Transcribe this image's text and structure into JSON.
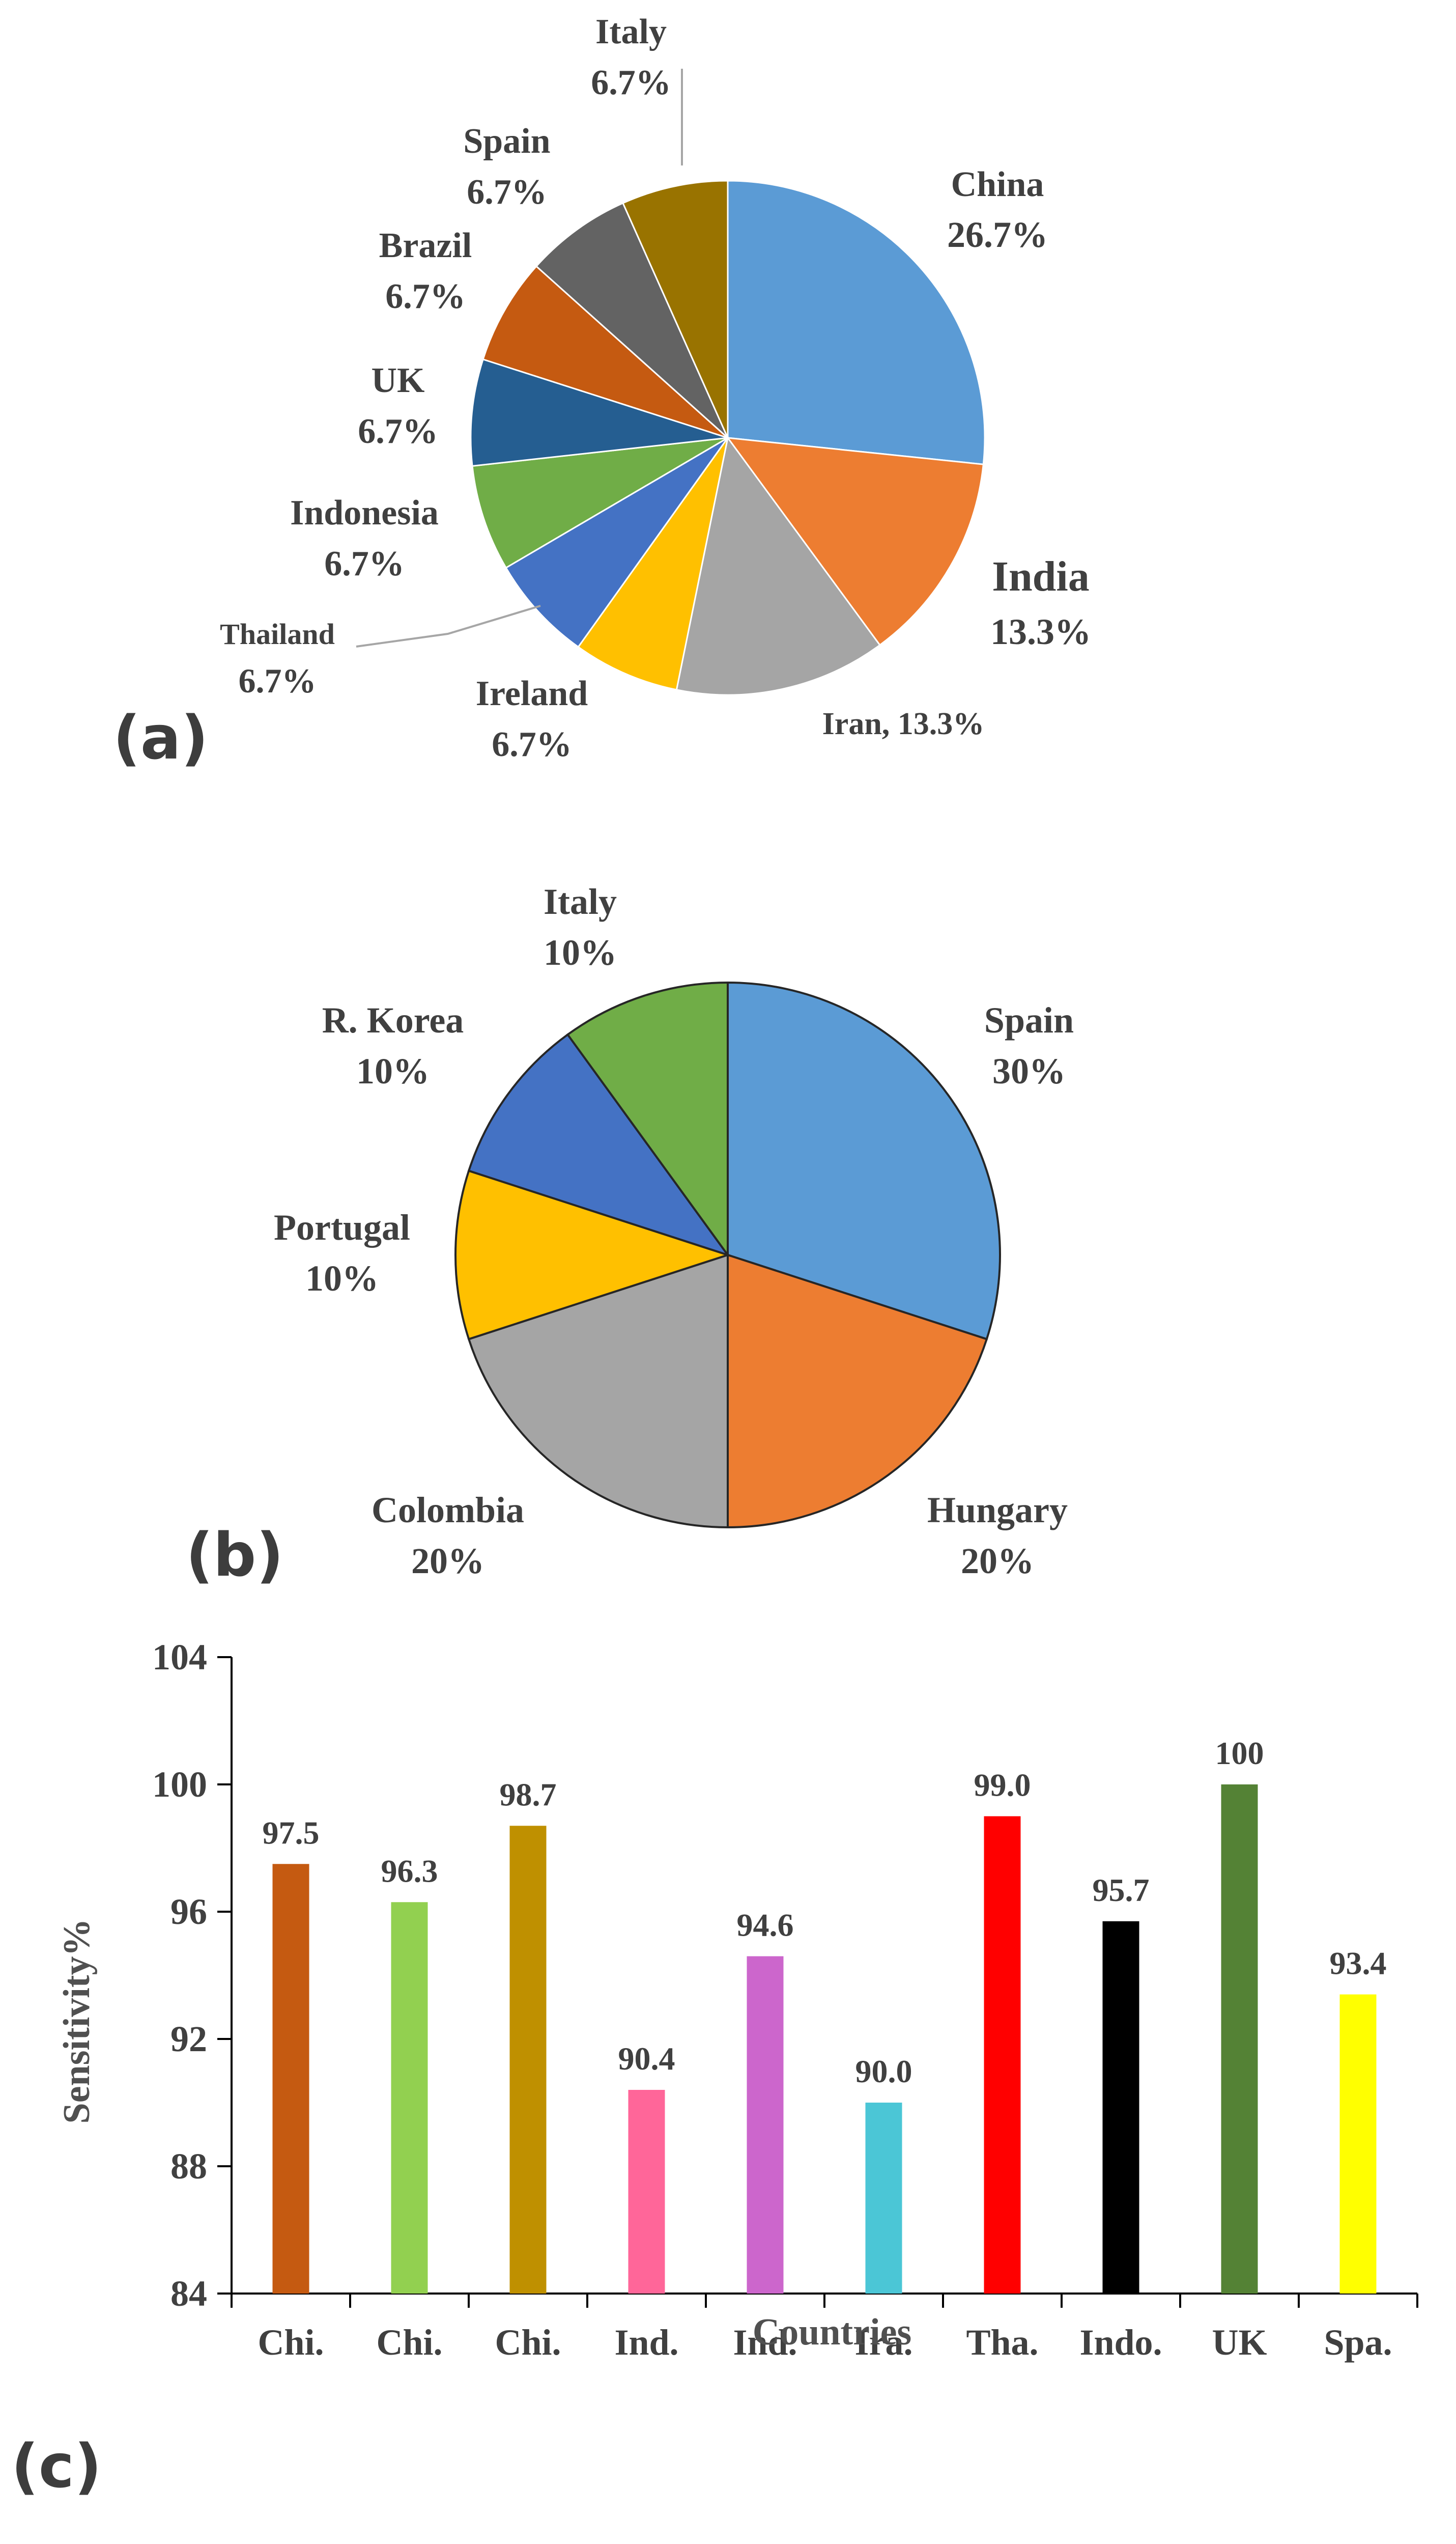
{
  "chart_data": [
    {
      "type": "pie",
      "panel": "(a)",
      "title": "",
      "slices": [
        {
          "label": "China",
          "value": 26.7,
          "value_label": "26.7%",
          "color": "#5b9bd5"
        },
        {
          "label": "India",
          "value": 13.3,
          "value_label": "13.3%",
          "color": "#ed7d31"
        },
        {
          "label": "Iran",
          "value": 13.3,
          "value_label": "Iran, 13.3%",
          "color": "#a5a5a5"
        },
        {
          "label": "Ireland",
          "value": 6.7,
          "value_label": "6.7%",
          "color": "#ffc000"
        },
        {
          "label": "Thailand",
          "value": 6.7,
          "value_label": "6.7%",
          "color": "#4472c4"
        },
        {
          "label": "Indonesia",
          "value": 6.7,
          "value_label": "6.7%",
          "color": "#70ad47"
        },
        {
          "label": "UK",
          "value": 6.7,
          "value_label": "6.7%",
          "color": "#255e91"
        },
        {
          "label": "Brazil",
          "value": 6.7,
          "value_label": "6.7%",
          "color": "#c55a11"
        },
        {
          "label": "Spain",
          "value": 6.7,
          "value_label": "6.7%",
          "color": "#636363"
        },
        {
          "label": "Italy",
          "value": 6.7,
          "value_label": "6.7%",
          "color": "#997300"
        }
      ]
    },
    {
      "type": "pie",
      "panel": "(b)",
      "title": "",
      "slices": [
        {
          "label": "Spain",
          "value": 30,
          "value_label": "30%",
          "color": "#5b9bd5"
        },
        {
          "label": "Hungary",
          "value": 20,
          "value_label": "20%",
          "color": "#ed7d31"
        },
        {
          "label": "Colombia",
          "value": 20,
          "value_label": "20%",
          "color": "#a5a5a5"
        },
        {
          "label": "Portugal",
          "value": 10,
          "value_label": "10%",
          "color": "#ffc000"
        },
        {
          "label": "R. Korea",
          "value": 10,
          "value_label": "10%",
          "color": "#4472c4"
        },
        {
          "label": "Italy",
          "value": 10,
          "value_label": "10%",
          "color": "#70ad47"
        }
      ]
    },
    {
      "type": "bar",
      "panel": "(c)",
      "title": "",
      "xlabel": "Countries",
      "ylabel": "Sensitivity%",
      "ylim": [
        84,
        104
      ],
      "yticks": [
        84,
        88,
        92,
        96,
        100,
        104
      ],
      "categories": [
        "Chi.",
        "Chi.",
        "Chi.",
        "Ind.",
        "Ind.",
        "Ira.",
        "Tha.",
        "Indo.",
        "UK",
        "Spa."
      ],
      "values": [
        97.5,
        96.3,
        98.7,
        90.4,
        94.6,
        90.0,
        99.0,
        95.7,
        100,
        93.4
      ],
      "value_labels": [
        "97.5",
        "96.3",
        "98.7",
        "90.4",
        "94.6",
        "90.0",
        "99.0",
        "95.7",
        "100",
        "93.4"
      ],
      "colors": [
        "#c55a11",
        "#92d050",
        "#bf9000",
        "#ff6699",
        "#cc66cc",
        "#4bc6d6",
        "#ff0000",
        "#000000",
        "#548235",
        "#ffff00"
      ]
    }
  ]
}
